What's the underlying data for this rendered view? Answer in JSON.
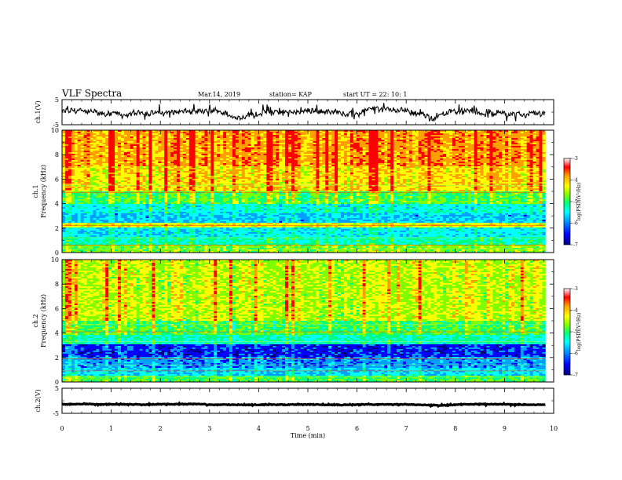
{
  "header": {
    "title": "VLF Spectra",
    "date": "Mar.14, 2019",
    "station": "station= KAP",
    "start": "start  UT  =   22: 10: 1"
  },
  "chart_data": [
    {
      "type": "line",
      "name": "ch1-waveform",
      "ylabel": "ch.1(V)",
      "ylim": [
        -5,
        5
      ],
      "yticks": [
        "5",
        "-5"
      ],
      "xlim": [
        0,
        10
      ],
      "x_extent": [
        0,
        9.83
      ],
      "baseline": 0,
      "amplitude": 2.5
    },
    {
      "type": "heatmap",
      "name": "ch1-spectrogram",
      "ylabel": "Frequency (kHz)",
      "channel_label": "ch.1",
      "ylim": [
        0,
        10
      ],
      "yticks": [
        "0",
        "2",
        "4",
        "6",
        "8",
        "10"
      ],
      "xlim": [
        0,
        10
      ],
      "x_extent": [
        0,
        9.83
      ],
      "bands": [
        {
          "range": [
            0,
            0.6
          ],
          "log_psd": -4.6
        },
        {
          "range": [
            0.6,
            1.3
          ],
          "log_psd": -5.2
        },
        {
          "range": [
            1.3,
            2.0
          ],
          "log_psd": -5.5
        },
        {
          "range": [
            2.0,
            2.4
          ],
          "log_psd": -4.2
        },
        {
          "range": [
            2.4,
            3.2
          ],
          "log_psd": -5.7
        },
        {
          "range": [
            3.2,
            4.0
          ],
          "log_psd": -5.4
        },
        {
          "range": [
            4.0,
            5.0
          ],
          "log_psd": -4.8
        },
        {
          "range": [
            5.0,
            7.0
          ],
          "log_psd": -4.0
        },
        {
          "range": [
            7.0,
            10.0
          ],
          "log_psd": -3.7
        }
      ],
      "colorbar": {
        "label": "log(PSD)(V²/Hz)",
        "ticks": [
          "-3",
          "-4",
          "-5",
          "-6",
          "-7"
        ],
        "range": [
          -7,
          -3
        ]
      }
    },
    {
      "type": "heatmap",
      "name": "ch2-spectrogram",
      "ylabel": "Frequency (kHz)",
      "channel_label": "ch.2",
      "ylim": [
        0,
        10
      ],
      "yticks": [
        "0",
        "2",
        "4",
        "6",
        "8",
        "10"
      ],
      "xlim": [
        0,
        10
      ],
      "x_extent": [
        0,
        9.83
      ],
      "bands": [
        {
          "range": [
            0,
            0.5
          ],
          "log_psd": -4.8
        },
        {
          "range": [
            0.5,
            1.2
          ],
          "log_psd": -5.6
        },
        {
          "range": [
            1.2,
            2.0
          ],
          "log_psd": -5.9
        },
        {
          "range": [
            2.0,
            3.1
          ],
          "log_psd": -6.3
        },
        {
          "range": [
            3.1,
            3.8
          ],
          "log_psd": -5.2
        },
        {
          "range": [
            3.8,
            5.0
          ],
          "log_psd": -4.8
        },
        {
          "range": [
            5.0,
            10.0
          ],
          "log_psd": -4.3
        }
      ],
      "colorbar": {
        "label": "log(PSD)(V²/Hz)",
        "ticks": [
          "-3",
          "-4",
          "-5",
          "-6",
          "-7"
        ],
        "range": [
          -7,
          -3
        ]
      }
    },
    {
      "type": "line",
      "name": "ch2-waveform",
      "ylabel": "ch.2(V)",
      "ylim": [
        -5,
        5
      ],
      "yticks": [
        "5",
        "-5"
      ],
      "xlim": [
        0,
        10
      ],
      "x_extent": [
        0,
        9.83
      ],
      "baseline": -1.5,
      "amplitude": 0.3
    }
  ],
  "x_axis": {
    "label": "Time (min)",
    "ticks": [
      "0",
      "1",
      "2",
      "3",
      "4",
      "5",
      "6",
      "7",
      "8",
      "9",
      "10"
    ]
  },
  "colors": {
    "scale": [
      "#000080",
      "#0000ff",
      "#00a0ff",
      "#00ffff",
      "#00ff80",
      "#80ff00",
      "#ffff00",
      "#ffa000",
      "#ff0000",
      "#ffffff"
    ]
  }
}
